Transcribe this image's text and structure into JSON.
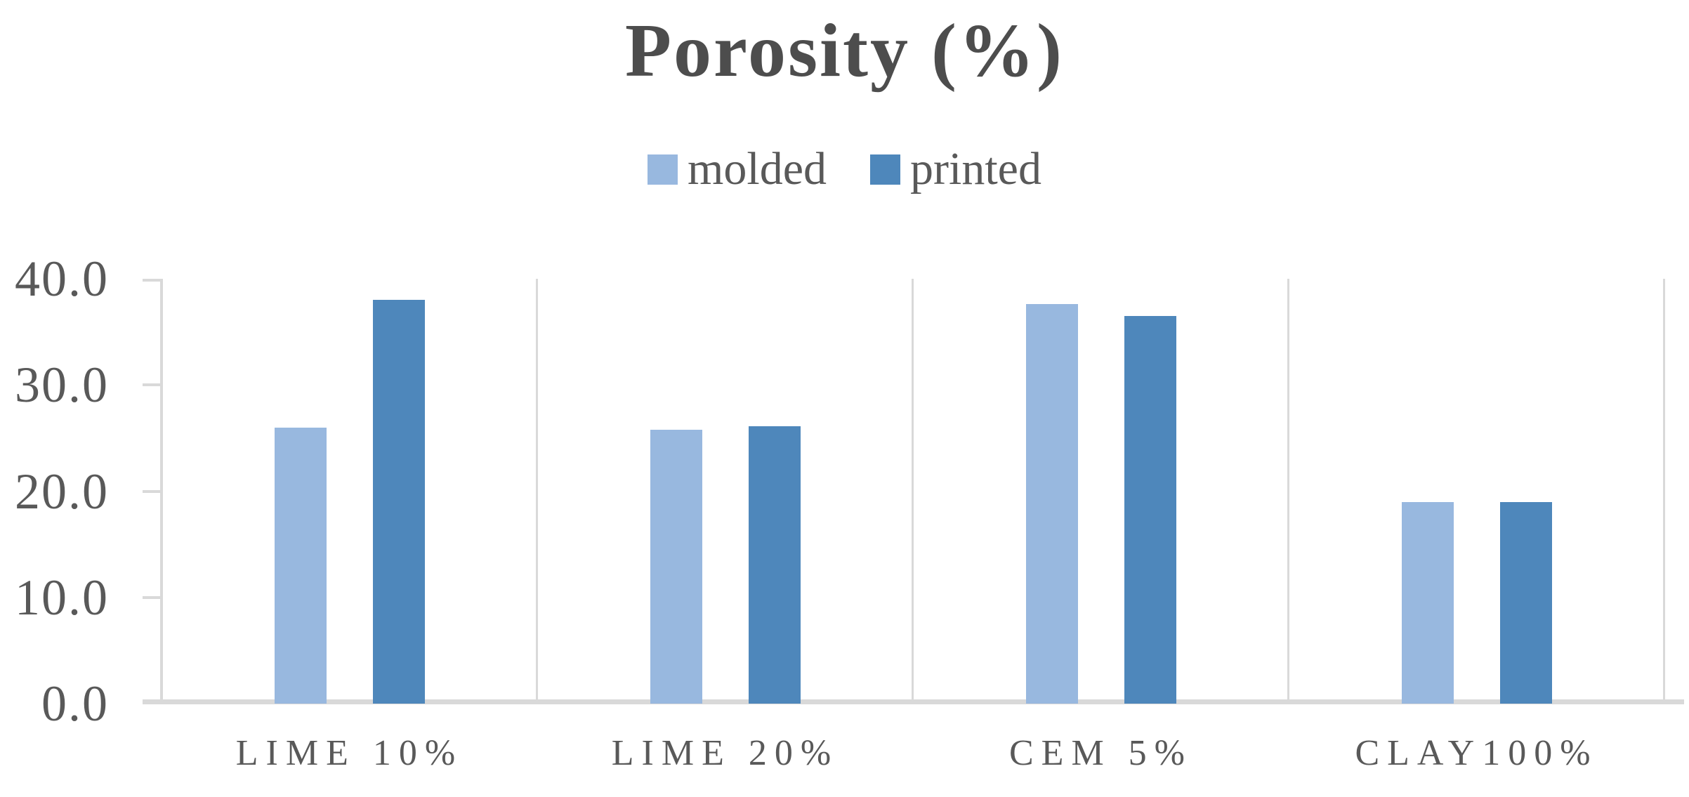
{
  "chart_data": {
    "type": "bar",
    "title": "Porosity (%)",
    "categories": [
      "LIME 10%",
      "LIME 20%",
      "CEM 5%",
      "CLAY100%"
    ],
    "series": [
      {
        "name": "molded",
        "color": "#98B8DF",
        "values": [
          26.0,
          25.8,
          37.6,
          19.0
        ]
      },
      {
        "name": "printed",
        "color": "#4E87BB",
        "values": [
          38.0,
          26.1,
          36.5,
          19.0
        ]
      }
    ],
    "ylim": [
      0,
      40
    ],
    "y_tick_values": [
      40,
      30,
      20,
      10,
      0
    ],
    "y_tick_labels": [
      "40.0",
      "30.0",
      "20.0",
      "10.0",
      "0.0"
    ],
    "legend_position": "top-center",
    "grid": "vertical-panel-separators",
    "colors": {
      "axis_line": "#D9D9D9",
      "text": "#595959",
      "title_text": "#4d4d4d"
    }
  }
}
